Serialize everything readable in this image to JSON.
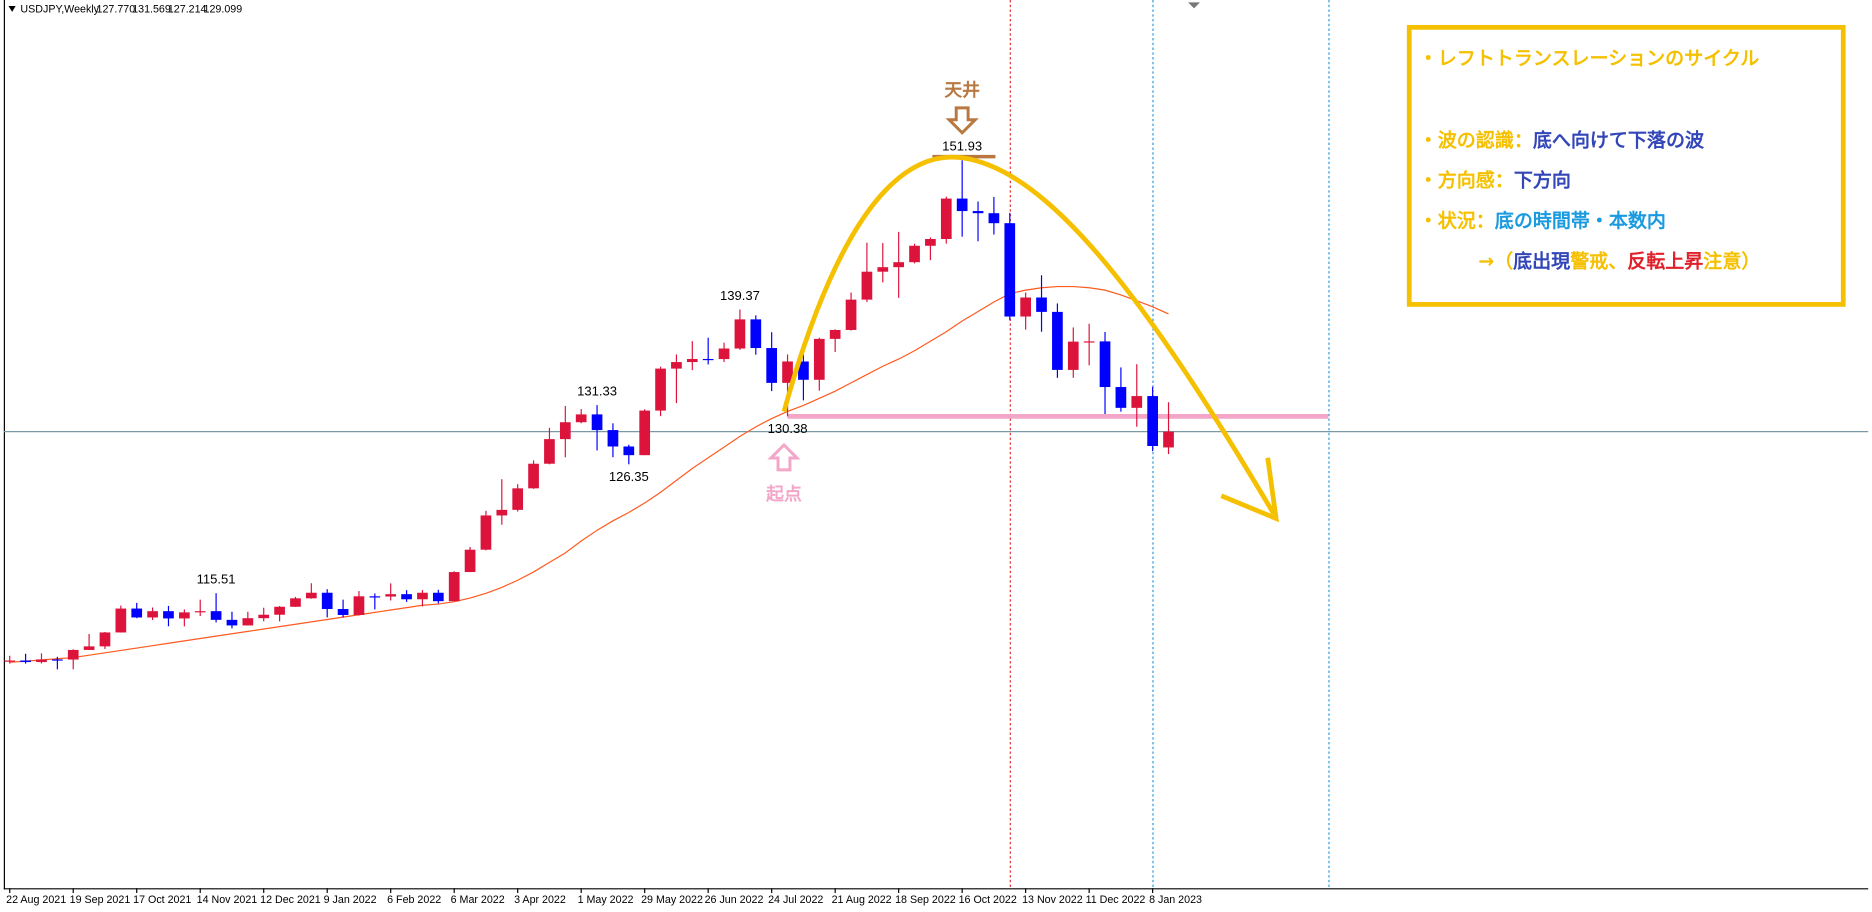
{
  "chart_data": {
    "type": "candlestick",
    "title": "USDJPY,Weekly",
    "header_values": [
      {
        "value": 127.77,
        "label": "127.770"
      },
      {
        "value": 131.569,
        "label": "131.569"
      },
      {
        "value": 127.214,
        "label": "127.214"
      },
      {
        "value": 129.099,
        "label": "129.099"
      }
    ],
    "categories": [
      "22 Aug 2021",
      null,
      null,
      null,
      "19 Sep 2021",
      null,
      null,
      null,
      "17 Oct 2021",
      null,
      null,
      null,
      "14 Nov 2021",
      null,
      null,
      null,
      "12 Dec 2021",
      null,
      null,
      null,
      "9 Jan 2022",
      null,
      null,
      null,
      "6 Feb 2022",
      null,
      null,
      null,
      "6 Mar 2022",
      null,
      null,
      null,
      "3 Apr 2022",
      null,
      null,
      null,
      "1 May 2022",
      null,
      null,
      null,
      "29 May 2022",
      null,
      null,
      null,
      "26 Jun 2022",
      null,
      null,
      null,
      "24 Jul 2022",
      null,
      null,
      null,
      "21 Aug 2022",
      null,
      null,
      null,
      "18 Sep 2022",
      null,
      null,
      null,
      "16 Oct 2022",
      null,
      null,
      null,
      "13 Nov 2022",
      null,
      null,
      null,
      "11 Dec 2022",
      null,
      null,
      null,
      "8 Jan 2023",
      null
    ],
    "open": [
      109.78,
      109.85,
      109.72,
      109.94,
      109.93,
      110.74,
      111.04,
      112.21,
      114.22,
      113.47,
      114.0,
      113.39,
      113.9,
      114.0,
      113.27,
      112.8,
      113.41,
      113.7,
      114.37,
      115.08,
      115.55,
      114.18,
      113.68,
      115.25,
      115.23,
      115.43,
      115.0,
      115.55,
      114.84,
      117.29,
      119.17,
      122.05,
      122.52,
      124.33,
      126.4,
      128.47,
      129.89,
      130.55,
      129.23,
      127.85,
      127.12,
      130.87,
      134.4,
      134.95,
      135.21,
      135.2,
      136.09,
      138.54,
      136.13,
      133.2,
      135.0,
      133.46,
      136.9,
      137.65,
      140.2,
      142.55,
      142.93,
      143.35,
      144.73,
      145.3,
      148.7,
      147.65,
      147.47,
      146.63,
      138.78,
      140.38,
      139.17,
      134.29,
      136.67,
      136.69,
      132.85,
      131.1,
      132.09,
      127.77
    ],
    "high": [
      110.25,
      110.42,
      110.45,
      110.16,
      110.79,
      112.08,
      112.25,
      114.47,
      114.7,
      114.31,
      114.44,
      114.15,
      114.97,
      115.51,
      113.95,
      113.95,
      114.29,
      114.43,
      115.2,
      116.35,
      115.85,
      114.97,
      115.69,
      115.49,
      116.34,
      115.77,
      115.77,
      115.8,
      117.35,
      119.4,
      122.44,
      125.1,
      124.68,
      126.68,
      129.41,
      131.26,
      131.0,
      131.33,
      129.8,
      128.0,
      130.98,
      134.56,
      135.59,
      136.71,
      137.0,
      136.58,
      139.37,
      138.88,
      137.46,
      135.59,
      135.58,
      137.0,
      137.7,
      140.8,
      144.99,
      144.96,
      145.9,
      144.9,
      145.43,
      148.86,
      151.93,
      148.45,
      148.83,
      147.5,
      140.79,
      142.25,
      139.88,
      137.86,
      138.17,
      137.48,
      134.5,
      134.77,
      132.87,
      131.57
    ],
    "low": [
      109.59,
      109.59,
      109.6,
      109.11,
      109.11,
      110.74,
      110.82,
      112.2,
      113.41,
      113.26,
      112.73,
      112.72,
      113.59,
      113.05,
      112.55,
      112.8,
      113.15,
      113.14,
      114.36,
      115.05,
      113.48,
      113.47,
      113.63,
      114.15,
      114.9,
      114.78,
      114.4,
      114.65,
      114.84,
      117.29,
      119.11,
      121.27,
      122.38,
      124.29,
      126.35,
      126.94,
      129.8,
      127.52,
      126.95,
      126.35,
      127.12,
      130.4,
      131.5,
      134.27,
      134.75,
      134.95,
      135.98,
      135.57,
      132.51,
      130.38,
      131.73,
      132.55,
      135.8,
      137.6,
      140.0,
      141.65,
      140.35,
      143.25,
      143.52,
      144.91,
      145.5,
      145.11,
      145.68,
      138.47,
      137.68,
      137.5,
      133.62,
      133.63,
      134.68,
      130.58,
      130.78,
      129.51,
      127.46,
      127.21
    ],
    "close": [
      109.85,
      109.72,
      109.94,
      109.93,
      110.74,
      111.04,
      112.21,
      114.22,
      113.47,
      114.0,
      113.39,
      113.9,
      114.0,
      113.27,
      112.8,
      113.41,
      113.7,
      114.37,
      115.08,
      115.55,
      114.18,
      113.68,
      115.25,
      115.23,
      115.43,
      115.0,
      115.55,
      114.84,
      117.29,
      119.17,
      122.05,
      122.52,
      124.33,
      126.4,
      128.47,
      129.89,
      130.55,
      129.23,
      127.85,
      127.12,
      130.87,
      134.4,
      134.95,
      135.21,
      135.2,
      136.09,
      138.54,
      136.13,
      133.2,
      135.0,
      133.46,
      136.9,
      137.65,
      140.2,
      142.55,
      142.93,
      143.35,
      144.73,
      145.3,
      148.7,
      147.65,
      147.47,
      146.63,
      138.78,
      140.38,
      139.17,
      134.29,
      136.67,
      136.69,
      132.85,
      131.1,
      132.09,
      127.89,
      129.1
    ],
    "up_color": "#dc143c",
    "down_color": "#0000ff",
    "ma": {
      "color": "#ff5a1f",
      "values": [
        109.7,
        109.8,
        109.9,
        110.0,
        110.1,
        110.3,
        110.5,
        110.7,
        110.9,
        111.1,
        111.3,
        111.5,
        111.7,
        111.9,
        112.1,
        112.3,
        112.5,
        112.7,
        112.9,
        113.1,
        113.3,
        113.5,
        113.7,
        113.9,
        114.1,
        114.3,
        114.5,
        114.6,
        114.8,
        115.1,
        115.5,
        116.0,
        116.6,
        117.3,
        118.1,
        118.9,
        119.9,
        120.8,
        121.6,
        122.3,
        123.1,
        124.0,
        125.0,
        126.0,
        126.9,
        127.8,
        128.7,
        129.5,
        130.2,
        130.8,
        131.3,
        131.9,
        132.5,
        133.2,
        133.9,
        134.6,
        135.2,
        135.9,
        136.7,
        137.5,
        138.4,
        139.2,
        140.0,
        140.7,
        141.0,
        141.2,
        141.3,
        141.3,
        141.2,
        141.0,
        140.6,
        140.1,
        139.6,
        139.0
      ]
    },
    "ylim": [
      90.7,
      165.4
    ],
    "annotations": {
      "peak": "天井",
      "start": "起点"
    },
    "info": [
      [
        {
          "text": "・レフトトランスレーションのサイクル",
          "color": "#f5c000"
        }
      ],
      [
        {
          "text": "・波の認識：",
          "color": "#f5c000"
        },
        {
          "text": "底へ向けて下落の波",
          "color": "#3346b8"
        }
      ],
      [
        {
          "text": "・方向感：",
          "color": "#f5c000"
        },
        {
          "text": "下方向",
          "color": "#3346b8"
        }
      ],
      [
        {
          "text": "・状況：",
          "color": "#f5c000"
        },
        {
          "text": "底の時間帯・本数内",
          "color": "#1a9be0"
        }
      ],
      [
        {
          "text": "→（",
          "color": "#f5c000"
        },
        {
          "text": "底出現",
          "color": "#3346b8"
        },
        {
          "text": "警戒、",
          "color": "#f5c000"
        },
        {
          "text": "反転上昇",
          "color": "#e0202a"
        },
        {
          "text": "注意）",
          "color": "#f5c000"
        }
      ]
    ]
  }
}
